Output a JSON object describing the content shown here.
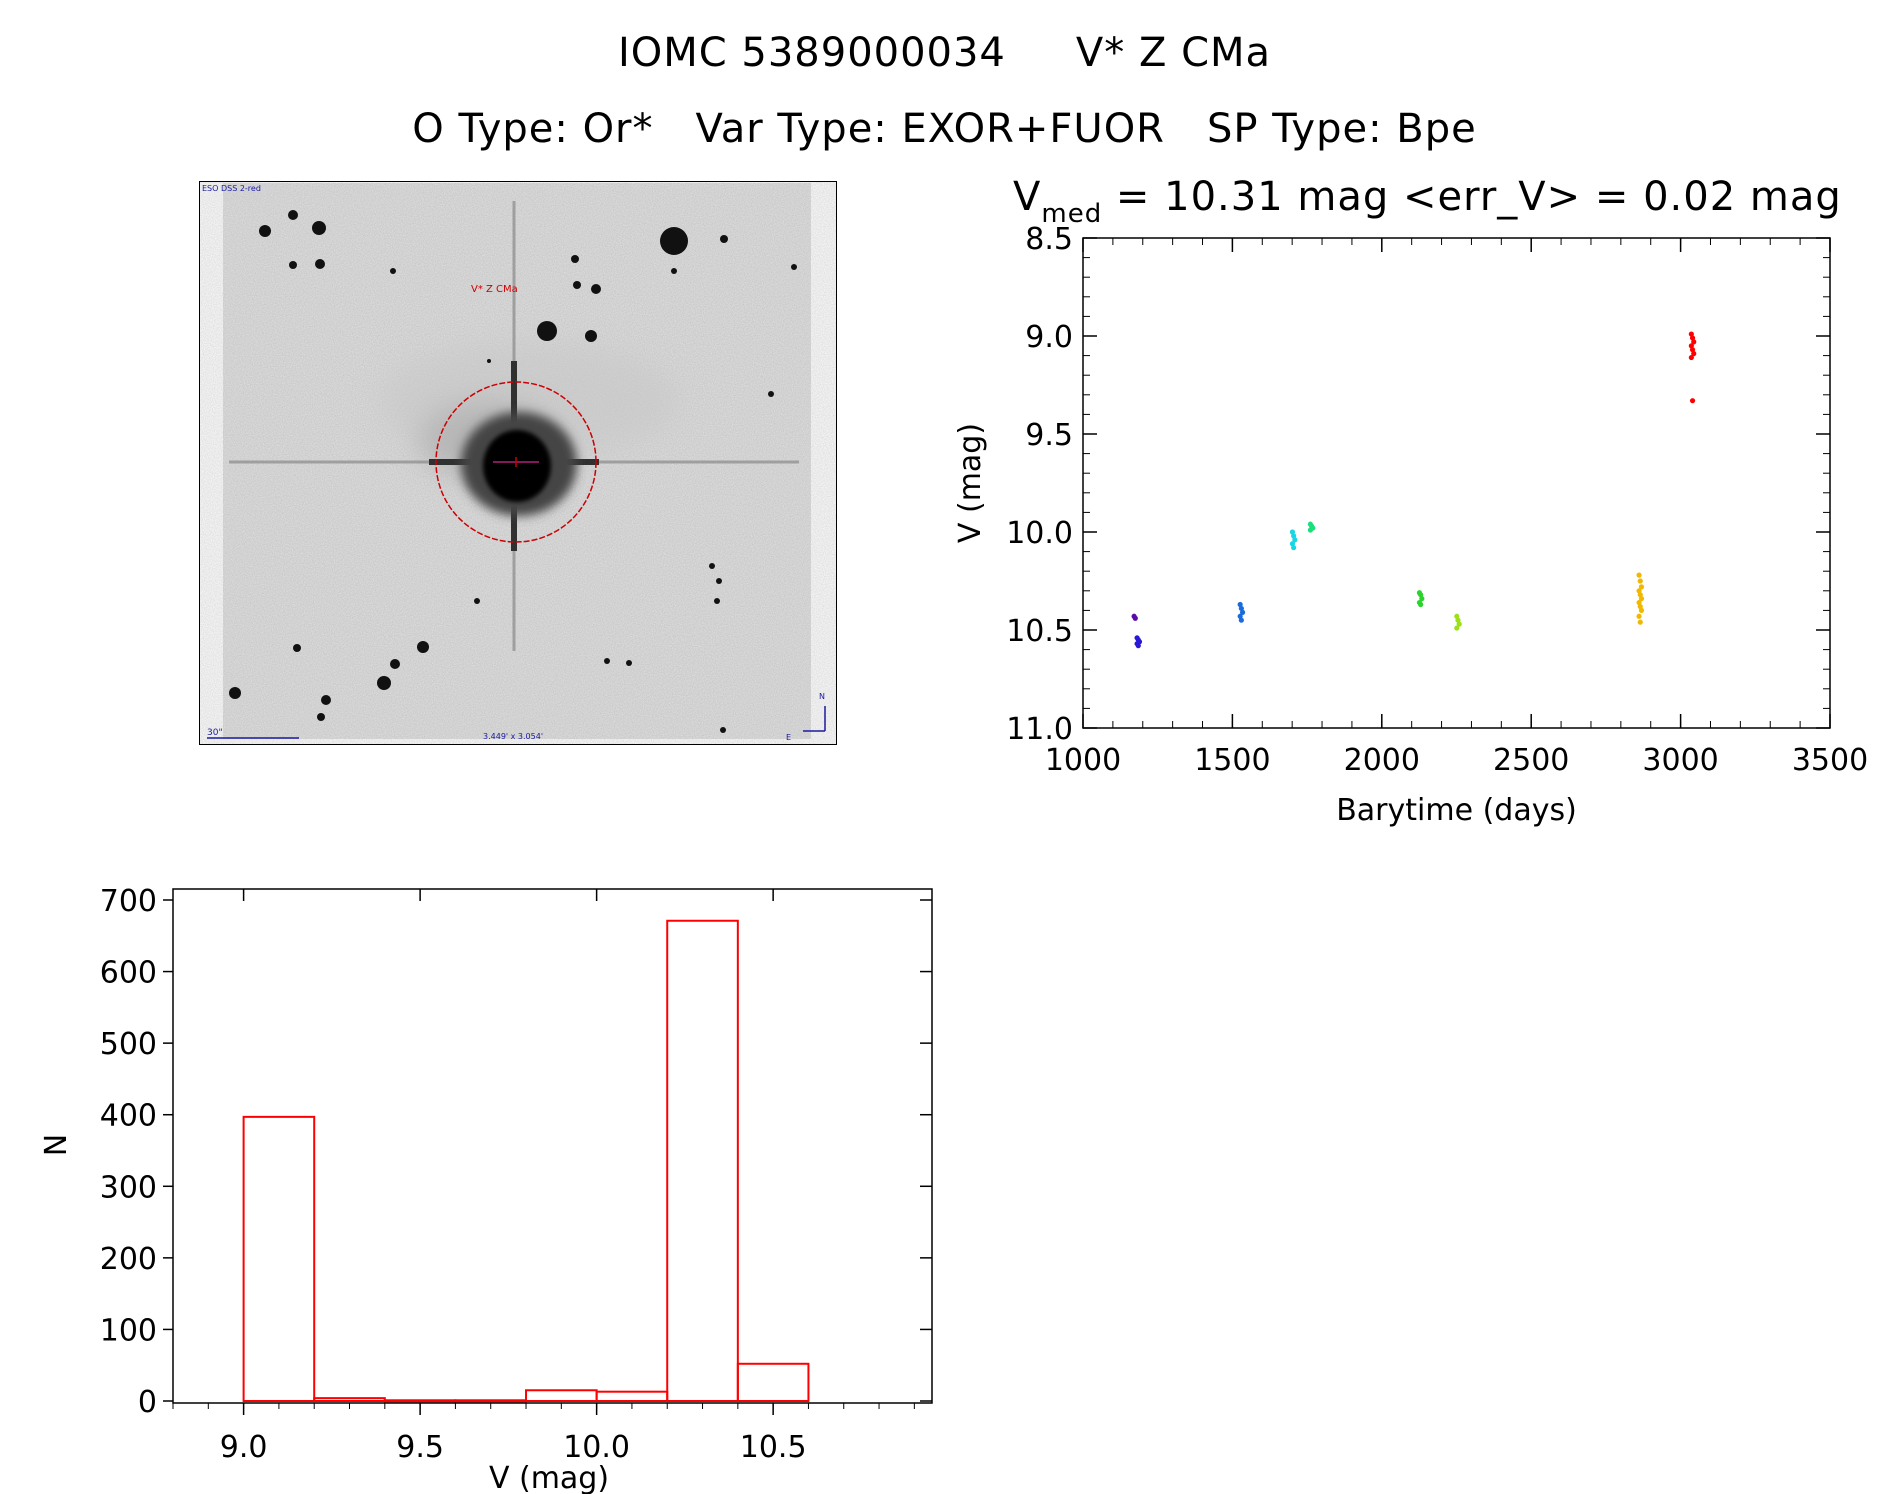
{
  "header": {
    "id": "IOMC 5389000034",
    "name": "V* Z CMa",
    "otype": "O Type: Or*",
    "vartype": "Var Type: EXOR+FUOR",
    "sptype": "SP Type: Bpe"
  },
  "sky_image": {
    "survey_label": "ESO DSS 2-red",
    "object_label": "V* Z CMa",
    "scale_label": "30\"",
    "fov_label": "3.449' x 3.054'",
    "north_label": "N",
    "east_label": "E"
  },
  "colors": {
    "hist": "#ff0000",
    "circle": "#cc0000",
    "scale": "#1a1aa0"
  },
  "chart_data": [
    {
      "type": "scatter",
      "title_prefix": "V",
      "title_sub": "med",
      "title_rest": " = 10.31 mag <err_V> = 0.02 mag",
      "xlabel": "Barytime (days)",
      "ylabel": "V (mag)",
      "xlim": [
        1000,
        3500
      ],
      "ylim": [
        8.5,
        11.0
      ],
      "y_inverted": true,
      "xticks": [
        "1000",
        "1500",
        "2000",
        "2500",
        "3000",
        "3500"
      ],
      "yticks": [
        "8.5",
        "9.0",
        "9.5",
        "10.0",
        "10.5",
        "11.0"
      ],
      "xtick_values": [
        1000,
        1500,
        2000,
        2500,
        3000,
        3500
      ],
      "ytick_values": [
        8.5,
        9.0,
        9.5,
        10.0,
        10.5,
        11.0
      ],
      "groups": [
        {
          "color": "#5a0aa6",
          "x": 1175,
          "y": [
            10.43,
            10.44
          ]
        },
        {
          "color": "#2a18d8",
          "x": 1185,
          "y": [
            10.54,
            10.55,
            10.56,
            10.57,
            10.58
          ]
        },
        {
          "color": "#1a6cdc",
          "x": 1530,
          "y": [
            10.37,
            10.39,
            10.41,
            10.43,
            10.45
          ]
        },
        {
          "color": "#18d6e6",
          "x": 1705,
          "y": [
            10.0,
            10.02,
            10.04,
            10.06,
            10.08
          ]
        },
        {
          "color": "#18e07c",
          "x": 1765,
          "y": [
            9.96,
            9.97,
            9.98,
            9.99
          ]
        },
        {
          "color": "#2ad42a",
          "x": 2130,
          "y": [
            10.31,
            10.32,
            10.34,
            10.36,
            10.37
          ]
        },
        {
          "color": "#9ce018",
          "x": 2255,
          "y": [
            10.43,
            10.45,
            10.47,
            10.49
          ]
        },
        {
          "color": "#f0b800",
          "x": 2865,
          "y": [
            10.22,
            10.25,
            10.28,
            10.3,
            10.32,
            10.34,
            10.36,
            10.38,
            10.4,
            10.43,
            10.46
          ]
        },
        {
          "color": "#ff0000",
          "x": 3040,
          "y": [
            8.99,
            9.01,
            9.03,
            9.05,
            9.07,
            9.09,
            9.11,
            9.33
          ]
        }
      ]
    },
    {
      "type": "bar",
      "xlabel": "V (mag)",
      "ylabel": "N",
      "xlim": [
        8.8,
        10.95
      ],
      "ylim": [
        0,
        700
      ],
      "xticks": [
        "9.0",
        "9.5",
        "10.0",
        "10.5"
      ],
      "xtick_values": [
        9.0,
        9.5,
        10.0,
        10.5
      ],
      "yticks": [
        "0",
        "100",
        "200",
        "300",
        "400",
        "500",
        "600",
        "700"
      ],
      "ytick_values": [
        0,
        100,
        200,
        300,
        400,
        500,
        600,
        700
      ],
      "bins": [
        9.0,
        9.2,
        9.4,
        9.6,
        9.8,
        10.0,
        10.2,
        10.4,
        10.6
      ],
      "counts": [
        397,
        4,
        1,
        1,
        15,
        13,
        671,
        52
      ]
    }
  ]
}
